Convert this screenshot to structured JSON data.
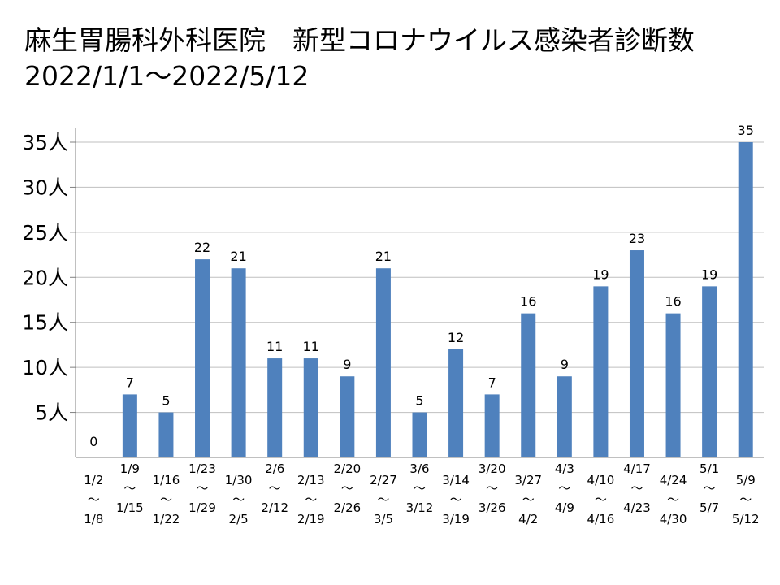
{
  "title": {
    "line1": "麻生胃腸科外科医院　新型コロナウイルス感染者診断数",
    "line2": "2022/1/1～2022/5/12"
  },
  "chart_data": {
    "type": "bar",
    "categories": [
      {
        "start": "1/2",
        "end": "1/8"
      },
      {
        "start": "1/9",
        "end": "1/15"
      },
      {
        "start": "1/16",
        "end": "1/22"
      },
      {
        "start": "1/23",
        "end": "1/29"
      },
      {
        "start": "1/30",
        "end": "2/5"
      },
      {
        "start": "2/6",
        "end": "2/12"
      },
      {
        "start": "2/13",
        "end": "2/19"
      },
      {
        "start": "2/20",
        "end": "2/26"
      },
      {
        "start": "2/27",
        "end": "3/5"
      },
      {
        "start": "3/6",
        "end": "3/12"
      },
      {
        "start": "3/14",
        "end": "3/19"
      },
      {
        "start": "3/20",
        "end": "3/26"
      },
      {
        "start": "3/27",
        "end": "4/2"
      },
      {
        "start": "4/3",
        "end": "4/9"
      },
      {
        "start": "4/10",
        "end": "4/16"
      },
      {
        "start": "4/17",
        "end": "4/23"
      },
      {
        "start": "4/24",
        "end": "4/30"
      },
      {
        "start": "5/1",
        "end": "5/7"
      },
      {
        "start": "5/9",
        "end": "5/12"
      }
    ],
    "values": [
      0,
      7,
      5,
      22,
      21,
      11,
      11,
      9,
      21,
      5,
      12,
      7,
      16,
      9,
      19,
      23,
      16,
      19,
      35
    ],
    "range_separator": "～",
    "ylim": [
      0,
      37
    ],
    "yticks": [
      5,
      10,
      15,
      20,
      25,
      30,
      35
    ],
    "ytick_unit": "人",
    "grid": true,
    "bar_color": "#4F81BD",
    "grid_color": "#BFBFBF",
    "axis_color": "#808080"
  }
}
